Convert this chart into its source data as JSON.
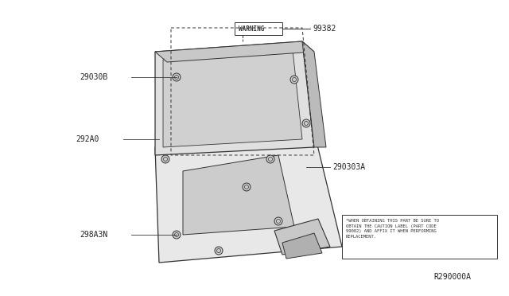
{
  "bg_color": "#ffffff",
  "diagram_color": "#333333",
  "title_ref": "R290000A",
  "warning_label": "WARNING",
  "part_99382": "99382",
  "part_29030B": "29030B",
  "part_292A0": "292A0",
  "part_290303A": "290303A",
  "part_298A3N": "298A3N",
  "caution_text": "*WHEN OBTAINING THIS PART BE SURE TO\nOBTAIN THE CAUTION LABEL (PART CODE\n99082) AND AFFIX IT WHEN PERFORMING\nREPLACEMENT.",
  "fig_width": 6.4,
  "fig_height": 3.72,
  "dpi": 100
}
